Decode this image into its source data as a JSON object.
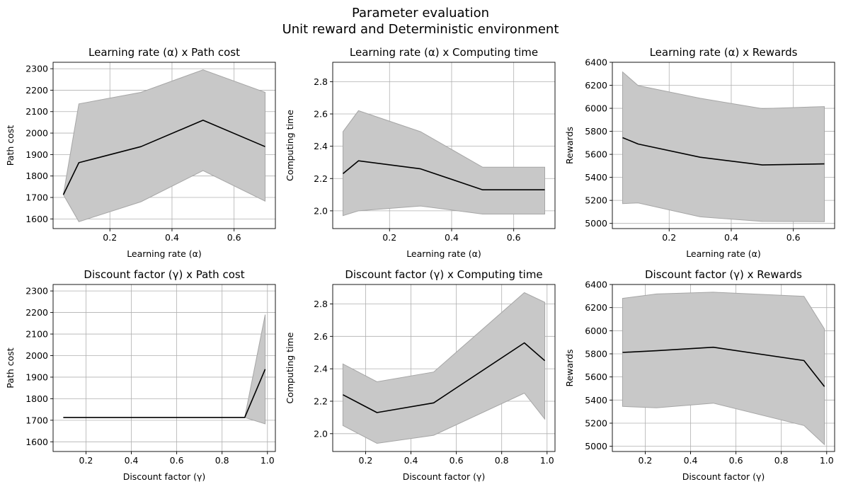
{
  "figure": {
    "title_line1": "Parameter evaluation",
    "title_line2": "Unit reward and Deterministic environment"
  },
  "colors": {
    "band": "#c8c8c8",
    "band_edge": "#a6a6a6",
    "line": "#000000",
    "grid": "#b0b0b0"
  },
  "chart_data": [
    {
      "type": "line",
      "title": "Learning rate (α) x Path cost",
      "xlabel": "Learning rate (α)",
      "ylabel": "Path cost",
      "xlim": [
        0.017,
        0.733
      ],
      "ylim": [
        1555,
        2330
      ],
      "xticks": [
        0.2,
        0.4,
        0.6
      ],
      "xticklabels": [
        "0.2",
        "0.4",
        "0.6"
      ],
      "yticks": [
        1600,
        1700,
        1800,
        1900,
        2000,
        2100,
        2200,
        2300
      ],
      "yticklabels": [
        "1600",
        "1700",
        "1800",
        "1900",
        "2000",
        "2100",
        "2200",
        "2300"
      ],
      "grid": true,
      "x": [
        0.05,
        0.1,
        0.3,
        0.5,
        0.7
      ],
      "series": [
        {
          "values": [
            1713,
            1862,
            1937,
            2060,
            1937
          ]
        },
        {
          "type": "area_band",
          "lower": [
            1713,
            1587,
            1680,
            1825,
            1683
          ],
          "upper": [
            1713,
            2136,
            2190,
            2295,
            2190
          ]
        }
      ]
    },
    {
      "type": "line",
      "title": "Learning rate (α) x Computing time",
      "xlabel": "Learning rate (α)",
      "ylabel": "Computing time",
      "xlim": [
        0.017,
        0.733
      ],
      "ylim": [
        1.89,
        2.92
      ],
      "xticks": [
        0.2,
        0.4,
        0.6
      ],
      "xticklabels": [
        "0.2",
        "0.4",
        "0.6"
      ],
      "yticks": [
        2.0,
        2.2,
        2.4,
        2.6,
        2.8
      ],
      "yticklabels": [
        "2.0",
        "2.2",
        "2.4",
        "2.6",
        "2.8"
      ],
      "grid": true,
      "x": [
        0.05,
        0.1,
        0.3,
        0.5,
        0.7
      ],
      "series": [
        {
          "values": [
            2.23,
            2.31,
            2.26,
            2.13,
            2.13
          ]
        },
        {
          "type": "area_band",
          "lower": [
            1.97,
            2.0,
            2.03,
            1.98,
            1.98
          ],
          "upper": [
            2.49,
            2.62,
            2.49,
            2.27,
            2.27
          ]
        }
      ]
    },
    {
      "type": "line",
      "title": "Learning rate (α) x Rewards",
      "xlabel": "Learning rate (α)",
      "ylabel": "Rewards",
      "xlim": [
        0.017,
        0.733
      ],
      "ylim": [
        4955,
        6400
      ],
      "xticks": [
        0.2,
        0.4,
        0.6
      ],
      "xticklabels": [
        "0.2",
        "0.4",
        "0.6"
      ],
      "yticks": [
        5000,
        5200,
        5400,
        5600,
        5800,
        6000,
        6200,
        6400
      ],
      "yticklabels": [
        "5000",
        "5200",
        "5400",
        "5600",
        "5800",
        "6000",
        "6200",
        "6400"
      ],
      "grid": true,
      "x": [
        0.05,
        0.1,
        0.3,
        0.5,
        0.7
      ],
      "series": [
        {
          "values": [
            5745,
            5690,
            5575,
            5508,
            5517
          ]
        },
        {
          "type": "area_band",
          "lower": [
            5172,
            5178,
            5057,
            5017,
            5015
          ],
          "upper": [
            6315,
            6198,
            6087,
            5997,
            6015
          ]
        }
      ]
    },
    {
      "type": "line",
      "title": "Discount factor (γ) x Path cost",
      "xlabel": "Discount factor (γ)",
      "ylabel": "Path cost",
      "xlim": [
        0.055,
        1.035
      ],
      "ylim": [
        1555,
        2330
      ],
      "xticks": [
        0.2,
        0.4,
        0.6,
        0.8,
        1.0
      ],
      "xticklabels": [
        "0.2",
        "0.4",
        "0.6",
        "0.8",
        "1.0"
      ],
      "yticks": [
        1600,
        1700,
        1800,
        1900,
        2000,
        2100,
        2200,
        2300
      ],
      "yticklabels": [
        "1600",
        "1700",
        "1800",
        "1900",
        "2000",
        "2100",
        "2200",
        "2300"
      ],
      "grid": true,
      "x": [
        0.1,
        0.25,
        0.5,
        0.9,
        0.99
      ],
      "series": [
        {
          "values": [
            1713,
            1713,
            1713,
            1713,
            1937
          ]
        },
        {
          "type": "area_band",
          "lower": [
            1713,
            1713,
            1713,
            1713,
            1683
          ],
          "upper": [
            1713,
            1713,
            1713,
            1713,
            2190
          ]
        }
      ]
    },
    {
      "type": "line",
      "title": "Discount factor (γ) x Computing time",
      "xlabel": "Discount factor (γ)",
      "ylabel": "Computing time",
      "xlim": [
        0.055,
        1.035
      ],
      "ylim": [
        1.89,
        2.92
      ],
      "xticks": [
        0.2,
        0.4,
        0.6,
        0.8,
        1.0
      ],
      "xticklabels": [
        "0.2",
        "0.4",
        "0.6",
        "0.8",
        "1.0"
      ],
      "yticks": [
        2.0,
        2.2,
        2.4,
        2.6,
        2.8
      ],
      "yticklabels": [
        "2.0",
        "2.2",
        "2.4",
        "2.6",
        "2.8"
      ],
      "grid": true,
      "x": [
        0.1,
        0.25,
        0.5,
        0.9,
        0.99
      ],
      "series": [
        {
          "values": [
            2.24,
            2.13,
            2.19,
            2.56,
            2.45
          ]
        },
        {
          "type": "area_band",
          "lower": [
            2.05,
            1.94,
            1.99,
            2.25,
            2.09
          ],
          "upper": [
            2.43,
            2.32,
            2.38,
            2.87,
            2.81
          ]
        }
      ]
    },
    {
      "type": "line",
      "title": "Discount factor (γ) x Rewards",
      "xlabel": "Discount factor (γ)",
      "ylabel": "Rewards",
      "xlim": [
        0.055,
        1.035
      ],
      "ylim": [
        4955,
        6400
      ],
      "xticks": [
        0.2,
        0.4,
        0.6,
        0.8,
        1.0
      ],
      "xticklabels": [
        "0.2",
        "0.4",
        "0.6",
        "0.8",
        "1.0"
      ],
      "yticks": [
        5000,
        5200,
        5400,
        5600,
        5800,
        6000,
        6200,
        6400
      ],
      "yticklabels": [
        "5000",
        "5200",
        "5400",
        "5600",
        "5800",
        "6000",
        "6200",
        "6400"
      ],
      "grid": true,
      "x": [
        0.1,
        0.25,
        0.5,
        0.9,
        0.99
      ],
      "series": [
        {
          "values": [
            5812,
            5827,
            5857,
            5742,
            5517
          ]
        },
        {
          "type": "area_band",
          "lower": [
            5345,
            5333,
            5373,
            5180,
            5015
          ],
          "upper": [
            6280,
            6318,
            6333,
            6298,
            6015
          ]
        }
      ]
    }
  ]
}
